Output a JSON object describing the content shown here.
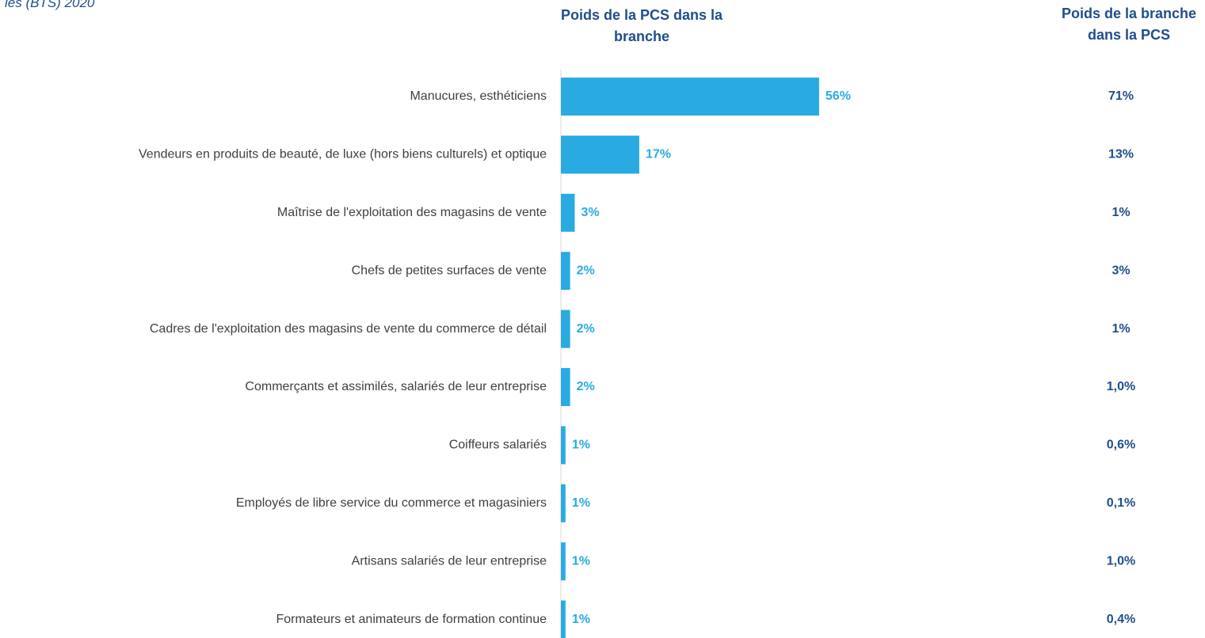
{
  "chart_data": {
    "type": "bar",
    "orientation": "horizontal",
    "subtitle": "les (BTS) 2020",
    "categories": [
      "Manucures, esthéticiens",
      "Vendeurs en produits de beauté, de luxe (hors biens culturels) et optique",
      "Maîtrise de l'exploitation des magasins de vente",
      "Chefs de petites surfaces de vente",
      "Cadres de l'exploitation des magasins de vente du commerce de détail",
      "Commerçants et assimilés, salariés de leur entreprise",
      "Coiffeurs salariés",
      "Employés de libre service du commerce et magasiniers",
      "Artisans salariés de leur entreprise",
      "Formateurs et animateurs de formation continue"
    ],
    "xlim": [
      0,
      100
    ],
    "series": [
      {
        "name": "Poids de la PCS dans la branche",
        "color": "#29abe2",
        "values": [
          56,
          17,
          3,
          2,
          2,
          2,
          1,
          1,
          1,
          1
        ],
        "value_labels": [
          "56%",
          "17%",
          "3%",
          "2%",
          "2%",
          "2%",
          "1%",
          "1%",
          "1%",
          "1%"
        ]
      },
      {
        "name": "Poids de la branche dans la PCS",
        "color": "#1f4e8c",
        "values": [
          71,
          13,
          1,
          3,
          1,
          1.0,
          0.6,
          0.1,
          1.0,
          0.4
        ],
        "value_labels": [
          "71%",
          "13%",
          "1%",
          "3%",
          "1%",
          "1,0%",
          "0,6%",
          "0,1%",
          "1,0%",
          "0,4%"
        ]
      }
    ]
  }
}
